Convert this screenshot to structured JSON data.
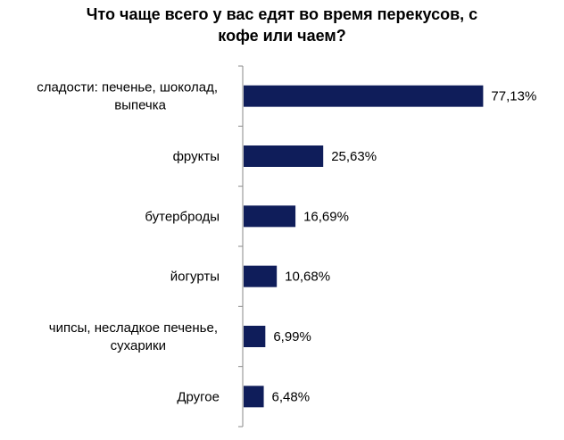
{
  "chart_data": {
    "type": "bar",
    "orientation": "horizontal",
    "title_lines": [
      "Что чаще всего у  вас едят во время перекусов, с",
      "кофе или чаем?"
    ],
    "categories": [
      [
        "сладости: печенье, шоколад,",
        "выпечка"
      ],
      [
        "фрукты"
      ],
      [
        "бутерброды"
      ],
      [
        "йогурты"
      ],
      [
        "чипсы, несладкое печенье,",
        "сухарики"
      ],
      [
        "Другое"
      ]
    ],
    "values": [
      77.13,
      25.63,
      16.69,
      10.68,
      6.99,
      6.48
    ],
    "value_labels": [
      "77,13%",
      "25,63%",
      "16,69%",
      "10,68%",
      "6,99%",
      "6,48%"
    ],
    "xlim": [
      0,
      100
    ],
    "grid": false,
    "legend": "none",
    "colors": {
      "bar": "#0f1d5a",
      "axis": "#8a8a8a"
    }
  }
}
